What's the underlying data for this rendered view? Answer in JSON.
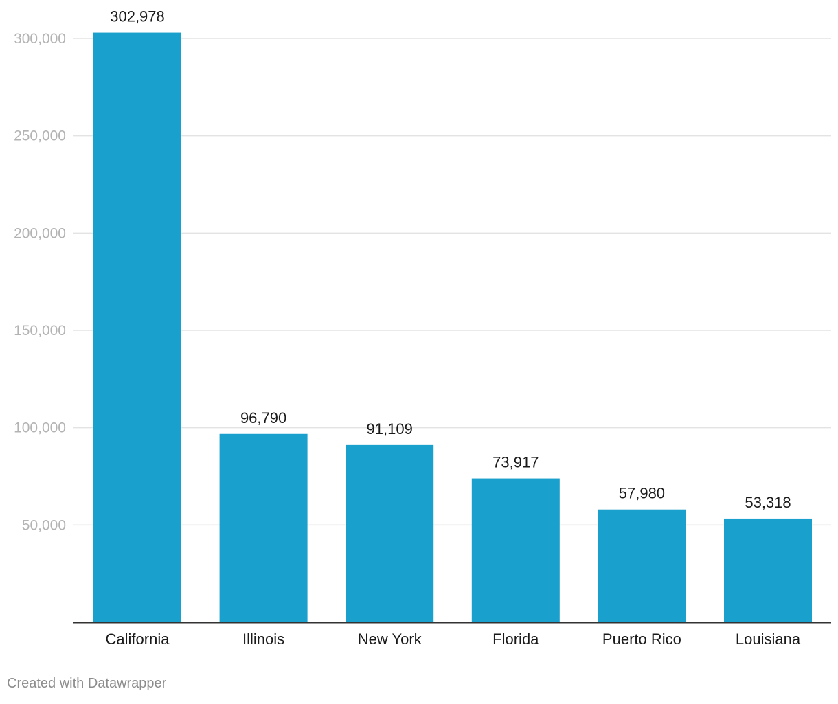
{
  "chart_data": {
    "type": "bar",
    "title": "",
    "xlabel": "",
    "ylabel": "",
    "categories": [
      "California",
      "Illinois",
      "New York",
      "Florida",
      "Puerto Rico",
      "Louisiana"
    ],
    "values": [
      302978,
      96790,
      91109,
      73917,
      57980,
      53318
    ],
    "value_labels": [
      "302,978",
      "96,790",
      "91,109",
      "73,917",
      "57,980",
      "53,318"
    ],
    "ylim": [
      0,
      300000
    ],
    "yticks": [
      50000,
      100000,
      150000,
      200000,
      250000,
      300000
    ],
    "ytick_labels": [
      "50,000",
      "100,000",
      "150,000",
      "200,000",
      "250,000",
      "300,000"
    ],
    "grid": true,
    "legend": "none",
    "bar_color": "#1aa0cc",
    "grid_color": "#e3e3e3",
    "axis_color": "#333333",
    "tick_label_color": "#b3b3b3",
    "text_color": "#1a1a1a"
  },
  "footer": {
    "credit": "Created with Datawrapper"
  }
}
